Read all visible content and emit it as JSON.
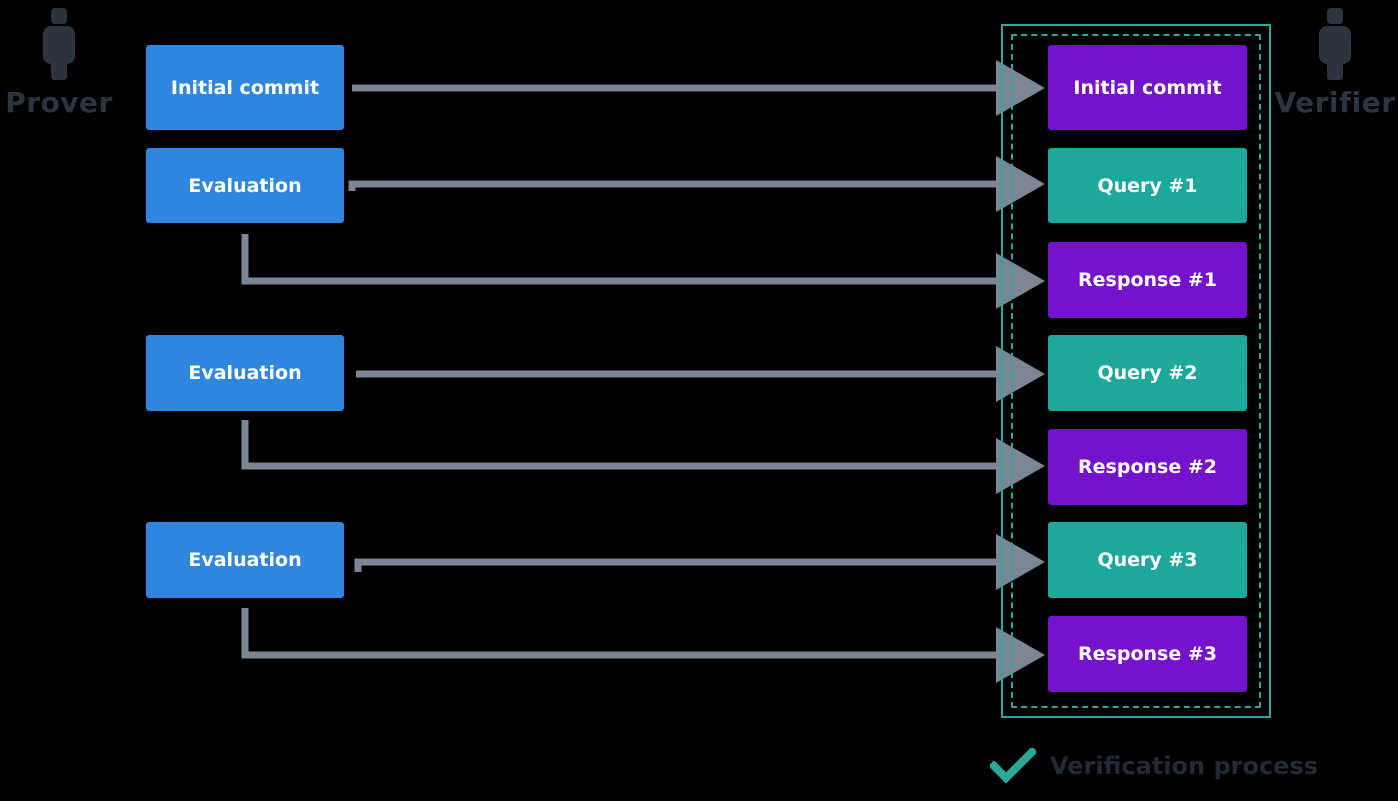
{
  "colors": {
    "blue": "#2e86de",
    "purple": "#7512cc",
    "teal": "#1ca89a",
    "arrow": "#7b8794",
    "frame": "#2aa89c",
    "actor_icon": "#2c3440"
  },
  "prover": {
    "label": "Prover",
    "icon": "person-icon"
  },
  "verifier": {
    "label": "Verifier",
    "icon": "person-icon"
  },
  "prover_steps": [
    {
      "label": "Initial commit"
    },
    {
      "label": "Evaluation"
    },
    {
      "label": "Evaluation"
    },
    {
      "label": "Evaluation"
    }
  ],
  "verifier_steps": [
    {
      "label": "Initial commit",
      "kind": "commit"
    },
    {
      "label": "Query #1",
      "kind": "query"
    },
    {
      "label": "Response #1",
      "kind": "response"
    },
    {
      "label": "Query #2",
      "kind": "query"
    },
    {
      "label": "Response #2",
      "kind": "response"
    },
    {
      "label": "Query #3",
      "kind": "query"
    },
    {
      "label": "Response #3",
      "kind": "response"
    }
  ],
  "legend": {
    "icon": "checkmark-icon",
    "label": "Verification process"
  }
}
